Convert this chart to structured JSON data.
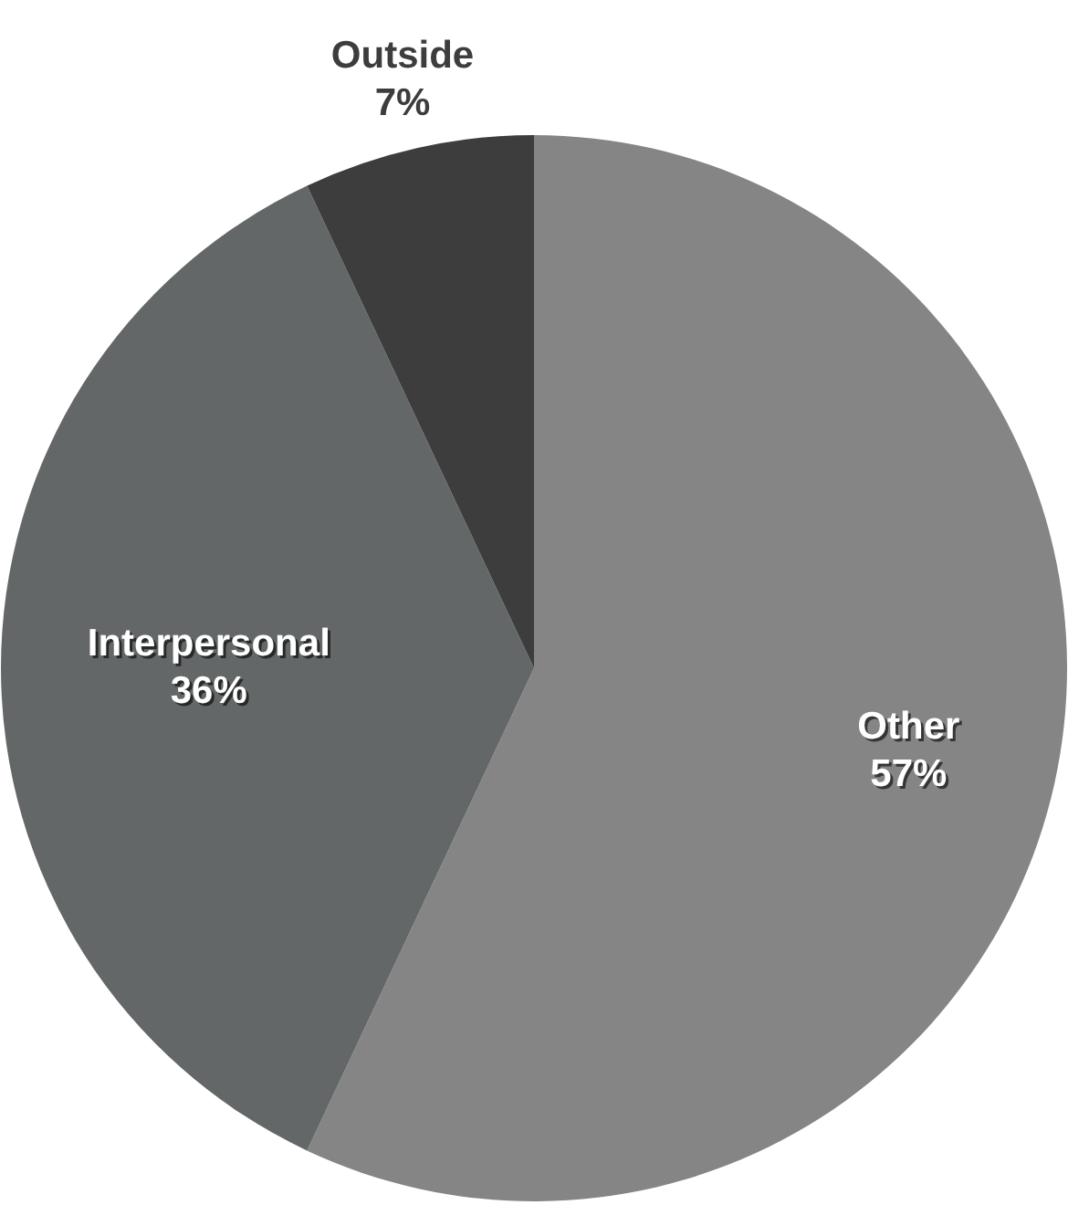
{
  "chart_data": {
    "type": "pie",
    "categories": [
      "Other",
      "Interpersonal",
      "Outside"
    ],
    "values": [
      57,
      36,
      7
    ],
    "colors": [
      "#858585",
      "#646767",
      "#3d3d3d"
    ],
    "value_labels": [
      "57%",
      "36%",
      "7%"
    ],
    "legend": false
  }
}
